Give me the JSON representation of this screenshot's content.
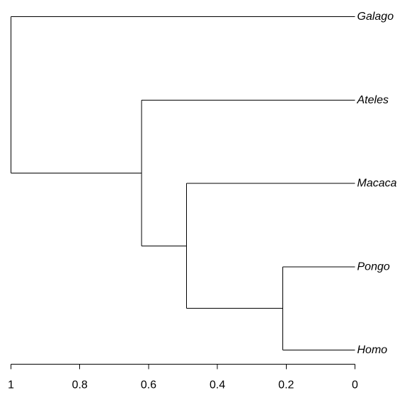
{
  "tree": {
    "tips": [
      {
        "id": "galago",
        "label": "Galago"
      },
      {
        "id": "ateles",
        "label": "Ateles"
      },
      {
        "id": "macaca",
        "label": "Macaca"
      },
      {
        "id": "pongo",
        "label": "Pongo"
      },
      {
        "id": "homo",
        "label": "Homo"
      }
    ],
    "nodes": [
      {
        "id": "n_pongo_homo",
        "height": 0.21,
        "children": [
          "pongo",
          "homo"
        ]
      },
      {
        "id": "n_macaca",
        "height": 0.49,
        "children": [
          "macaca",
          "n_pongo_homo"
        ]
      },
      {
        "id": "n_ateles",
        "height": 0.62,
        "children": [
          "ateles",
          "n_macaca"
        ]
      },
      {
        "id": "root",
        "height": 1.0,
        "children": [
          "galago",
          "n_ateles"
        ]
      }
    ]
  },
  "axis": {
    "range": [
      1,
      0
    ],
    "ticks": [
      {
        "value": 1,
        "label": "1"
      },
      {
        "value": 0.8,
        "label": "0.8"
      },
      {
        "value": 0.6,
        "label": "0.6"
      },
      {
        "value": 0.4,
        "label": "0.4"
      },
      {
        "value": 0.2,
        "label": "0.2"
      },
      {
        "value": 0,
        "label": "0"
      }
    ]
  },
  "colors": {
    "line": "#000000",
    "background": "#ffffff"
  }
}
